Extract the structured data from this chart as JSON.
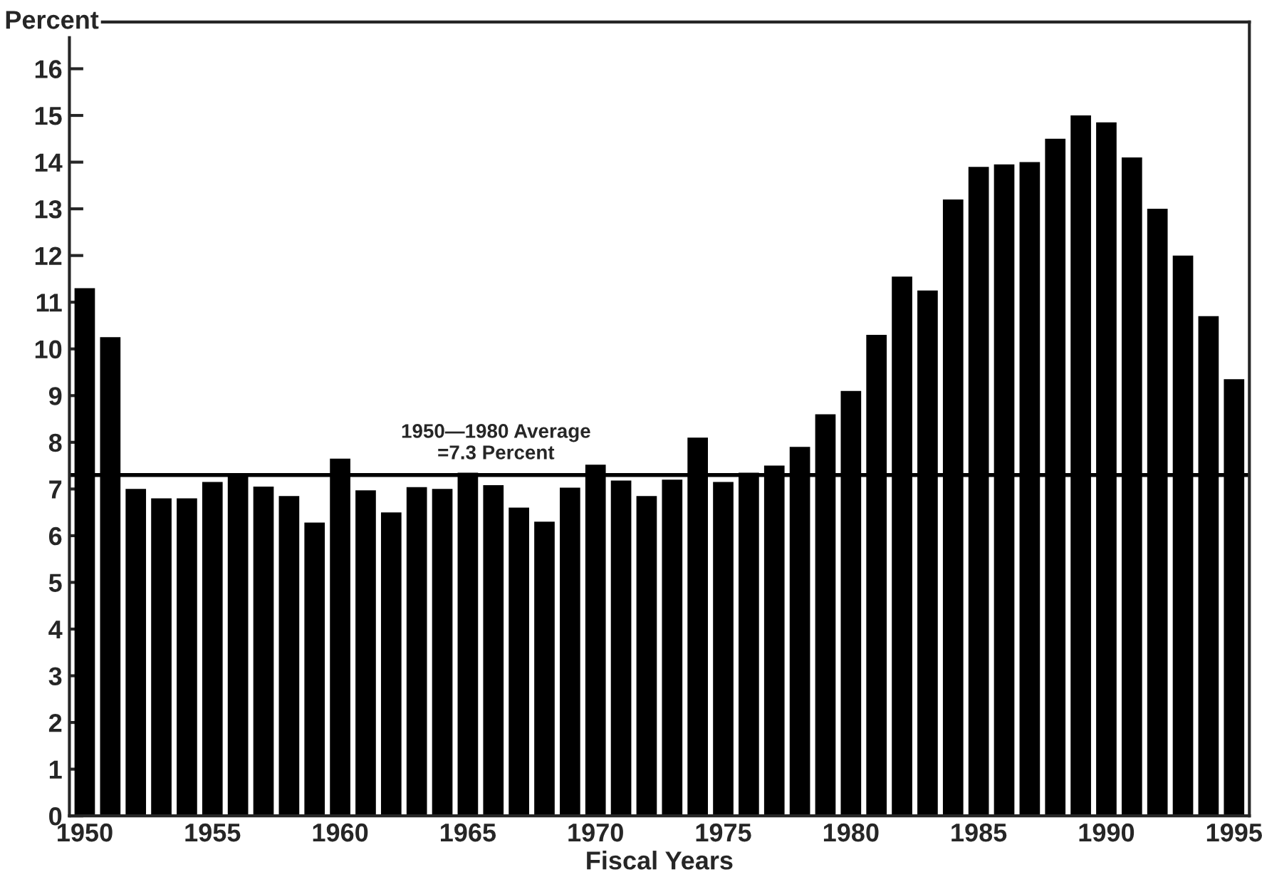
{
  "chart_data": {
    "type": "bar",
    "ylabel": "Percent",
    "xlabel": "Fiscal Years",
    "categories": [
      "1950",
      null,
      null,
      null,
      null,
      "1955",
      null,
      null,
      null,
      null,
      "1960",
      null,
      null,
      null,
      null,
      "1965",
      null,
      null,
      null,
      null,
      "1970",
      null,
      null,
      null,
      null,
      "1975",
      null,
      null,
      null,
      null,
      "1980",
      null,
      null,
      null,
      null,
      "1985",
      null,
      null,
      null,
      null,
      "1990",
      null,
      null,
      null,
      null,
      "1995"
    ],
    "values": [
      11.3,
      10.25,
      7.0,
      6.8,
      6.8,
      7.15,
      7.33,
      7.05,
      6.85,
      6.28,
      7.65,
      6.97,
      6.5,
      7.04,
      7.0,
      7.35,
      7.08,
      6.6,
      6.3,
      7.03,
      7.52,
      7.18,
      6.85,
      7.2,
      8.1,
      7.15,
      7.35,
      7.5,
      7.9,
      8.6,
      9.1,
      10.3,
      11.55,
      11.25,
      13.2,
      13.9,
      13.95,
      14.0,
      14.5,
      15.0,
      14.85,
      14.1,
      13.0,
      12.0,
      10.7,
      9.35
    ],
    "color": "#000000",
    "ylim": [
      0,
      17
    ],
    "yticks": [
      0,
      1,
      2,
      3,
      4,
      5,
      6,
      7,
      8,
      9,
      10,
      11,
      12,
      13,
      14,
      15,
      16
    ],
    "ref_lines": [
      {
        "axis": "y",
        "value": 7.3,
        "label": "1950—1980 Average\n=7.3 Percent",
        "color": "#000000"
      }
    ],
    "grid": false,
    "legend": false
  }
}
